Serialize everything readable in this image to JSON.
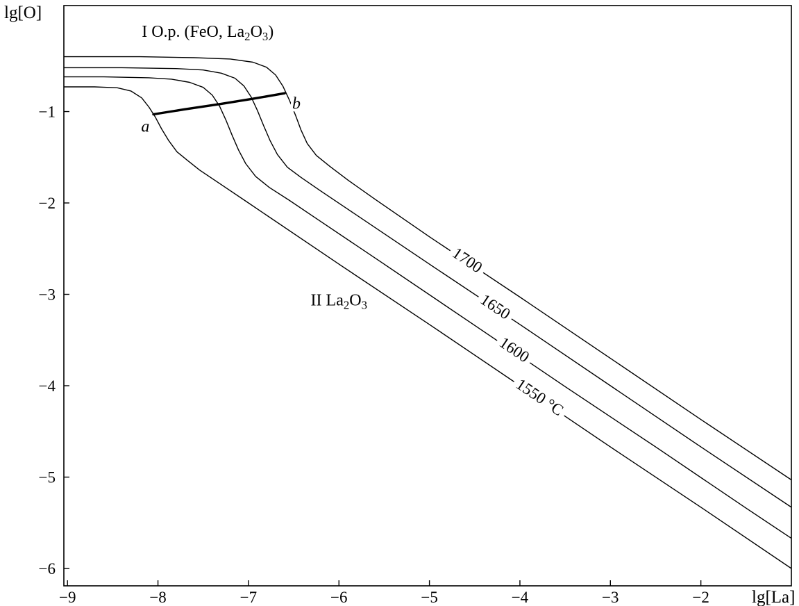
{
  "chart_data": {
    "type": "line",
    "title": "",
    "xlabel": "lg[La]",
    "ylabel": "lg[O]",
    "xlim": [
      -9.04,
      -1.0
    ],
    "ylim": [
      -6.19,
      0.16
    ],
    "grid": false,
    "isotherm_slope": -0.667,
    "colors": {
      "line": "#000000",
      "background": "#ffffff"
    },
    "x_ticks": {
      "values": [
        -9,
        -8,
        -7,
        -6,
        -5,
        -4,
        -3,
        -2
      ],
      "labels": [
        "−9",
        "−8",
        "−7",
        "−6",
        "−5",
        "−4",
        "−3",
        "−2"
      ]
    },
    "y_ticks": {
      "values": [
        -1,
        -2,
        -3,
        -4,
        -5,
        -6
      ],
      "labels": [
        "−1",
        "−2",
        "−3",
        "−4",
        "−5",
        "−6"
      ]
    },
    "series": [
      {
        "name": "1700",
        "label": "1700",
        "label_pos": [
          -4.59,
          -2.64
        ],
        "plateau_lgO": -0.4,
        "points": [
          [
            -9.04,
            -0.4
          ],
          [
            -8.2,
            -0.4
          ],
          [
            -7.6,
            -0.41
          ],
          [
            -7.2,
            -0.425
          ],
          [
            -6.95,
            -0.46
          ],
          [
            -6.8,
            -0.515
          ],
          [
            -6.7,
            -0.6
          ],
          [
            -6.62,
            -0.72
          ],
          [
            -6.55,
            -0.87
          ],
          [
            -6.48,
            -1.04
          ],
          [
            -6.42,
            -1.2
          ],
          [
            -6.35,
            -1.35
          ],
          [
            -6.25,
            -1.48
          ],
          [
            -6.1,
            -1.6
          ],
          [
            -5.9,
            -1.75
          ],
          [
            -5.6,
            -1.96
          ],
          [
            -5.0,
            -2.37
          ],
          [
            -4.0,
            -3.03
          ],
          [
            -3.0,
            -3.7
          ],
          [
            -2.0,
            -4.37
          ],
          [
            -1.0,
            -5.03
          ]
        ]
      },
      {
        "name": "1650",
        "label": "1650",
        "label_pos": [
          -4.28,
          -3.15
        ],
        "plateau_lgO": -0.52,
        "points": [
          [
            -9.04,
            -0.52
          ],
          [
            -8.4,
            -0.52
          ],
          [
            -7.8,
            -0.53
          ],
          [
            -7.5,
            -0.545
          ],
          [
            -7.3,
            -0.58
          ],
          [
            -7.15,
            -0.635
          ],
          [
            -7.05,
            -0.72
          ],
          [
            -6.97,
            -0.84
          ],
          [
            -6.9,
            -0.99
          ],
          [
            -6.83,
            -1.16
          ],
          [
            -6.76,
            -1.32
          ],
          [
            -6.68,
            -1.47
          ],
          [
            -6.57,
            -1.61
          ],
          [
            -6.42,
            -1.72
          ],
          [
            -6.2,
            -1.87
          ],
          [
            -5.9,
            -2.07
          ],
          [
            -5.0,
            -2.67
          ],
          [
            -4.0,
            -3.33
          ],
          [
            -3.0,
            -4.0
          ],
          [
            -2.0,
            -4.67
          ],
          [
            -1.0,
            -5.33
          ]
        ]
      },
      {
        "name": "1600",
        "label": "1600",
        "label_pos": [
          -4.07,
          -3.62
        ],
        "plateau_lgO": -0.62,
        "points": [
          [
            -9.04,
            -0.62
          ],
          [
            -8.6,
            -0.62
          ],
          [
            -8.1,
            -0.63
          ],
          [
            -7.85,
            -0.645
          ],
          [
            -7.65,
            -0.68
          ],
          [
            -7.5,
            -0.735
          ],
          [
            -7.4,
            -0.82
          ],
          [
            -7.32,
            -0.94
          ],
          [
            -7.25,
            -1.09
          ],
          [
            -7.18,
            -1.26
          ],
          [
            -7.11,
            -1.42
          ],
          [
            -7.03,
            -1.57
          ],
          [
            -6.92,
            -1.71
          ],
          [
            -6.77,
            -1.83
          ],
          [
            -6.55,
            -1.97
          ],
          [
            -6.25,
            -2.17
          ],
          [
            -5.5,
            -2.67
          ],
          [
            -4.5,
            -3.34
          ],
          [
            -3.5,
            -4.01
          ],
          [
            -2.5,
            -4.67
          ],
          [
            -1.5,
            -5.34
          ],
          [
            -1.0,
            -5.67
          ]
        ]
      },
      {
        "name": "1550",
        "label": "1550 °C",
        "label_pos": [
          -3.79,
          -4.14
        ],
        "plateau_lgO": -0.73,
        "points": [
          [
            -9.04,
            -0.73
          ],
          [
            -8.7,
            -0.73
          ],
          [
            -8.45,
            -0.74
          ],
          [
            -8.3,
            -0.775
          ],
          [
            -8.18,
            -0.85
          ],
          [
            -8.1,
            -0.95
          ],
          [
            -8.03,
            -1.06
          ],
          [
            -7.96,
            -1.19
          ],
          [
            -7.88,
            -1.32
          ],
          [
            -7.79,
            -1.44
          ],
          [
            -7.68,
            -1.53
          ],
          [
            -7.54,
            -1.64
          ],
          [
            -7.3,
            -1.8
          ],
          [
            -7.0,
            -2.0
          ],
          [
            -6.0,
            -2.67
          ],
          [
            -5.0,
            -3.33
          ],
          [
            -4.0,
            -4.0
          ],
          [
            -3.0,
            -4.67
          ],
          [
            -2.0,
            -5.33
          ],
          [
            -1.0,
            -6.0
          ]
        ]
      }
    ],
    "tie_line": {
      "name": "a-b",
      "points": [
        [
          -8.05,
          -1.03
        ],
        [
          -7.7,
          -0.975
        ],
        [
          -7.3,
          -0.915
        ],
        [
          -6.95,
          -0.86
        ],
        [
          -6.6,
          -0.8
        ]
      ],
      "ends": [
        {
          "label": "a",
          "pos": [
            -8.14,
            -1.16
          ]
        },
        {
          "label": "b",
          "pos": [
            -6.47,
            -0.91
          ]
        }
      ]
    },
    "region_labels": [
      {
        "name": "region-I-label",
        "pos": [
          -7.45,
          -0.12
        ],
        "segments": [
          {
            "t": "I  O.p. (FeO, La"
          },
          {
            "t": "2",
            "sub": true
          },
          {
            "t": "O"
          },
          {
            "t": "3",
            "sub": true
          },
          {
            "t": ")"
          }
        ]
      },
      {
        "name": "region-II-label",
        "pos": [
          -6.0,
          -3.06
        ],
        "segments": [
          {
            "t": "II  La"
          },
          {
            "t": "2",
            "sub": true
          },
          {
            "t": "O"
          },
          {
            "t": "3",
            "sub": true
          }
        ]
      }
    ]
  }
}
